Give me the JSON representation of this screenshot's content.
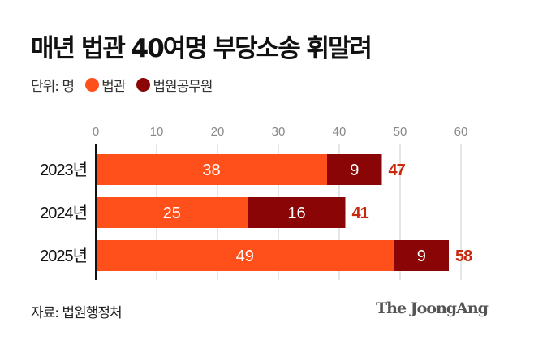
{
  "title": "매년 법관 40여명 부당소송 휘말려",
  "legend": {
    "unit": "단위: 명",
    "items": [
      "법관",
      "법원공무원"
    ]
  },
  "source": "자료: 법원행정처",
  "logo": "The JoongAng",
  "colors": {
    "judges": "#ff4f1a",
    "staff": "#8a0505",
    "total_label": "#c8280c"
  },
  "chart_data": {
    "type": "bar",
    "orientation": "horizontal",
    "stacked": true,
    "categories": [
      "2023년",
      "2024년",
      "2025년"
    ],
    "series": [
      {
        "name": "법관",
        "values": [
          38,
          25,
          49
        ]
      },
      {
        "name": "법원공무원",
        "values": [
          9,
          16,
          9
        ]
      }
    ],
    "totals": [
      47,
      41,
      58
    ],
    "xlim": [
      0,
      60
    ],
    "xticks": [
      0,
      10,
      20,
      30,
      40,
      50,
      60
    ],
    "grid": true,
    "legend": "top-left"
  }
}
